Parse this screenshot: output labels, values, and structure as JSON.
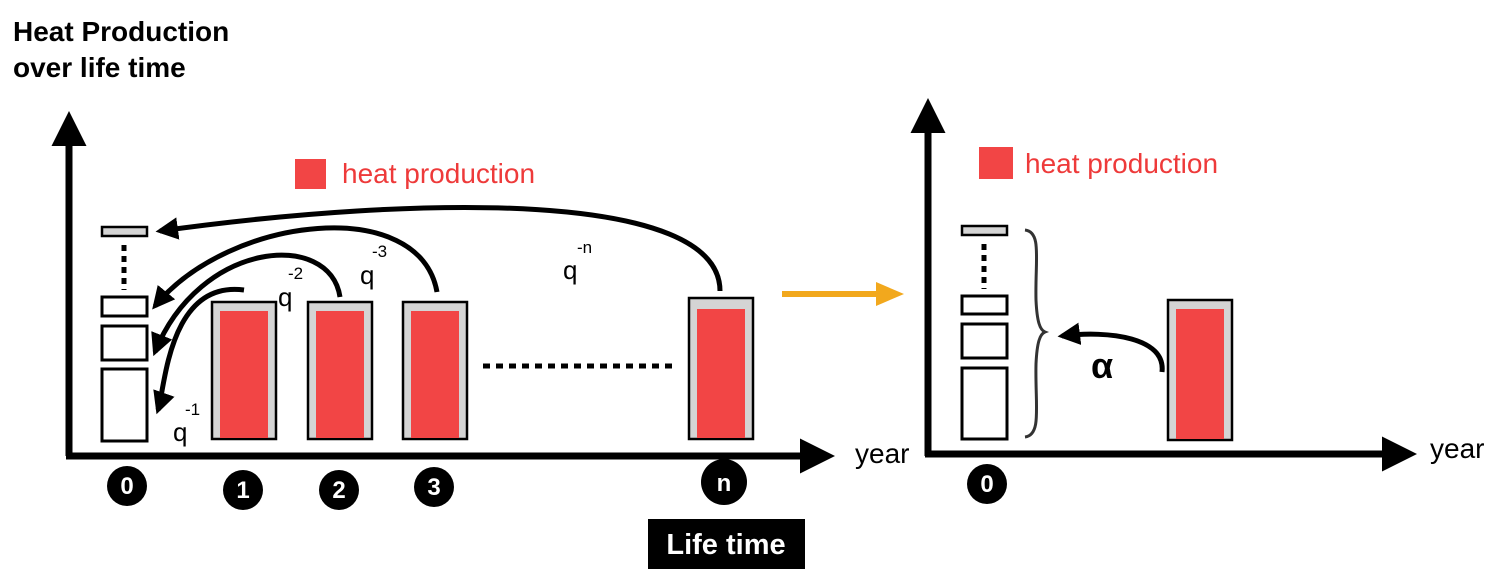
{
  "title": {
    "line1": "Heat Production",
    "line2": "over life time"
  },
  "left_panel": {
    "legend": {
      "label": "heat production",
      "color": "#f24545"
    },
    "x_axis_label": "year",
    "year_markers": [
      "0",
      "1",
      "2",
      "3",
      "n"
    ],
    "discount_labels": [
      {
        "base": "q",
        "exp": "-1"
      },
      {
        "base": "q",
        "exp": "-2"
      },
      {
        "base": "q",
        "exp": "-3"
      },
      {
        "base": "q",
        "exp": "-n"
      }
    ],
    "lifetime_label": "Life time"
  },
  "right_panel": {
    "legend": {
      "label": "heat production",
      "color": "#f24545"
    },
    "x_axis_label": "year",
    "year_marker": "0",
    "factor_label": "α"
  },
  "colors": {
    "bar_fill": "#f24545",
    "bar_frame": "#d4d4d4",
    "transition_arrow": "#f2a81d"
  }
}
